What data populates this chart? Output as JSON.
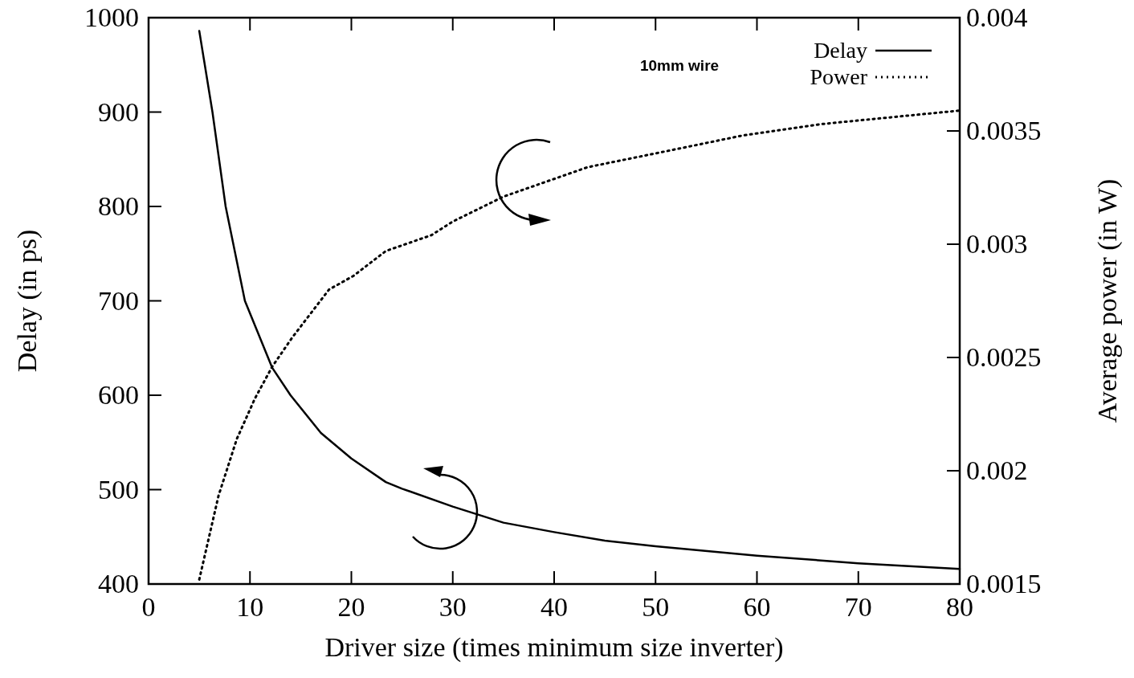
{
  "chart_data": {
    "type": "line",
    "xlabel": "Driver size (times minimum size inverter)",
    "ylabel": "Delay (in ps)",
    "y2label": "Average power (in W)",
    "annotations": [
      "10mm wire"
    ],
    "xlim": [
      0,
      80
    ],
    "xticks": [
      0,
      10,
      20,
      30,
      40,
      50,
      60,
      70,
      80
    ],
    "ylim": [
      400,
      1000
    ],
    "yticks": [
      400,
      500,
      600,
      700,
      800,
      900,
      1000
    ],
    "y2lim": [
      0.0015,
      0.004
    ],
    "y2ticks": [
      0.0015,
      0.002,
      0.0025,
      0.003,
      0.0035,
      0.004
    ],
    "legend": "top right",
    "grid": false,
    "series": [
      {
        "name": "Delay",
        "color": "#000000",
        "line_style": "solid",
        "x": [
          5,
          6.3,
          7.6,
          9.5,
          12.2,
          14,
          17,
          20,
          23.4,
          25,
          30,
          35,
          40,
          45,
          50,
          60,
          70,
          80
        ],
        "values": [
          986,
          900,
          800,
          700,
          629,
          600,
          560,
          533,
          508,
          501,
          482,
          465,
          455,
          446,
          440,
          430,
          422,
          416
        ]
      },
      {
        "name": "Power",
        "color": "#000000",
        "line_style": "dotted",
        "axis": "y2",
        "x": [
          5,
          6.9,
          8.7,
          10.5,
          12.2,
          14.2,
          17.8,
          20.2,
          23.4,
          27.9,
          30,
          35,
          43.3,
          51,
          58.6,
          66.3,
          80
        ],
        "values": [
          0.00152,
          0.00189,
          0.00214,
          0.00232,
          0.00246,
          0.00259,
          0.0028,
          0.00286,
          0.00297,
          0.00304,
          0.0031,
          0.00321,
          0.00334,
          0.00341,
          0.00348,
          0.00353,
          0.00359
        ]
      }
    ]
  }
}
